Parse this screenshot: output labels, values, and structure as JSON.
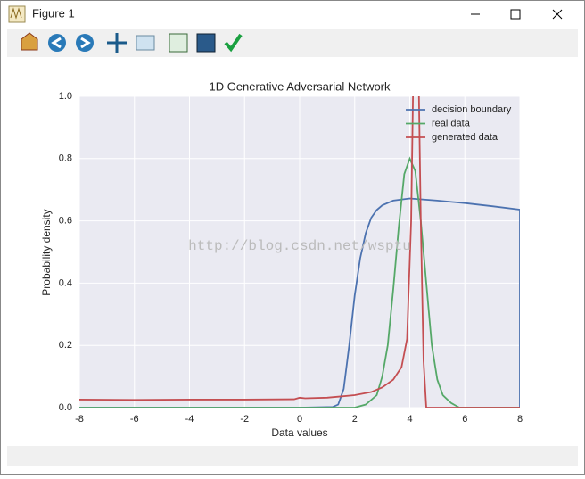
{
  "window": {
    "title": "Figure 1"
  },
  "watermark": "http://blog.csdn.net/wsptu",
  "chart_data": {
    "type": "line",
    "title": "1D Generative Adversarial Network",
    "x_label": "Data values",
    "y_label": "Probability density",
    "xlim": [
      -8,
      8
    ],
    "xticks": [
      -8,
      -6,
      -4,
      -2,
      0,
      2,
      4,
      6,
      8
    ],
    "ylim": [
      0,
      1
    ],
    "yticks": [
      {
        "value": 0,
        "label": "0.0"
      },
      0.2,
      0.4,
      0.6,
      0.8,
      {
        "value": 1,
        "label": "1.0"
      }
    ],
    "grid": true,
    "legend": "upper right",
    "series": [
      {
        "name": "decision boundary",
        "color": "#4c72b0",
        "x": [
          -8,
          0,
          1.2,
          1.4,
          1.6,
          1.8,
          2.0,
          2.2,
          2.4,
          2.6,
          2.8,
          3.0,
          3.4,
          4.0,
          5,
          6,
          7,
          8,
          8
        ],
        "values": [
          0,
          0,
          0.002,
          0.01,
          0.06,
          0.2,
          0.36,
          0.48,
          0.56,
          0.61,
          0.635,
          0.65,
          0.665,
          0.672,
          0.665,
          0.657,
          0.647,
          0.636,
          0
        ]
      },
      {
        "name": "real data",
        "color": "#55a868",
        "x": [
          -8,
          1.5,
          2.0,
          2.4,
          2.8,
          3.0,
          3.2,
          3.4,
          3.6,
          3.8,
          4.0,
          4.2,
          4.4,
          4.6,
          4.8,
          5.0,
          5.2,
          5.5,
          5.8,
          6,
          8
        ],
        "values": [
          0,
          0,
          0,
          0.01,
          0.04,
          0.1,
          0.2,
          0.38,
          0.58,
          0.75,
          0.8,
          0.76,
          0.6,
          0.4,
          0.2,
          0.09,
          0.04,
          0.015,
          0,
          0,
          0
        ]
      },
      {
        "name": "generated data",
        "color": "#c44e52",
        "x": [
          -8,
          -6,
          -4,
          -2,
          -0.2,
          0,
          0.2,
          1,
          2,
          2.6,
          3.0,
          3.4,
          3.7,
          3.9,
          4.05,
          4.15,
          4.3,
          4.4,
          4.5,
          4.6,
          5,
          8
        ],
        "values": [
          0.026,
          0.025,
          0.026,
          0.026,
          0.027,
          0.032,
          0.03,
          0.032,
          0.04,
          0.05,
          0.065,
          0.09,
          0.13,
          0.22,
          0.6,
          1.2,
          1.2,
          0.6,
          0.15,
          0,
          0,
          0
        ]
      }
    ]
  }
}
